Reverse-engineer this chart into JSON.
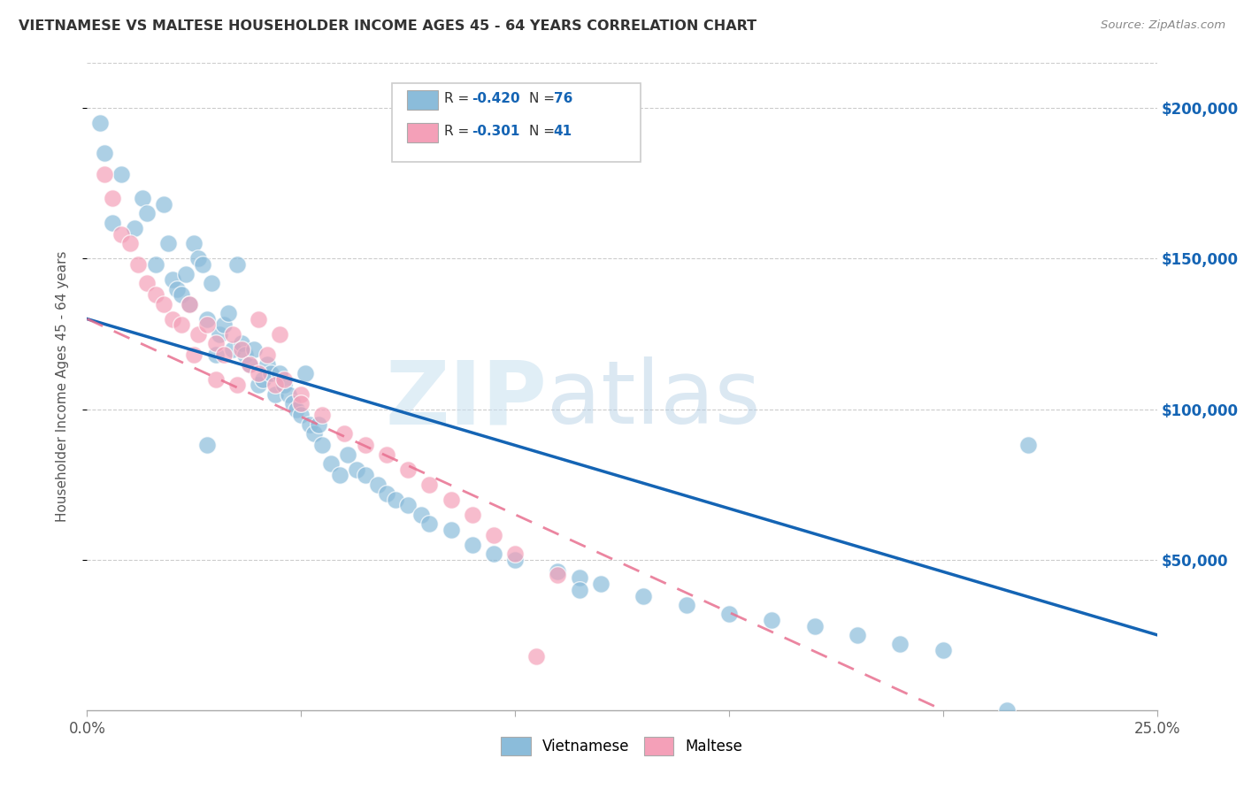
{
  "title": "VIETNAMESE VS MALTESE HOUSEHOLDER INCOME AGES 45 - 64 YEARS CORRELATION CHART",
  "source": "Source: ZipAtlas.com",
  "ylabel": "Householder Income Ages 45 - 64 years",
  "legend_line1": "R = -0.420   N = 76",
  "legend_line2": "R = -0.301   N = 41",
  "R_vietnamese": "-0.420",
  "N_vietnamese": "76",
  "R_maltese": "-0.301",
  "N_maltese": "41",
  "ytick_labels": [
    "$50,000",
    "$100,000",
    "$150,000",
    "$200,000"
  ],
  "ytick_values": [
    50000,
    100000,
    150000,
    200000
  ],
  "ylim": [
    0,
    215000
  ],
  "xlim": [
    0.0,
    0.25
  ],
  "blue_dot_color": "#8bbcda",
  "pink_dot_color": "#f4a0b8",
  "blue_line_color": "#1464b4",
  "pink_line_color": "#e87090",
  "watermark_zip": "ZIP",
  "watermark_atlas": "atlas",
  "vietnamese_x": [
    0.004,
    0.008,
    0.011,
    0.013,
    0.014,
    0.016,
    0.018,
    0.019,
    0.02,
    0.021,
    0.022,
    0.023,
    0.024,
    0.025,
    0.026,
    0.027,
    0.028,
    0.029,
    0.03,
    0.031,
    0.032,
    0.033,
    0.034,
    0.035,
    0.036,
    0.037,
    0.038,
    0.039,
    0.04,
    0.041,
    0.042,
    0.043,
    0.044,
    0.045,
    0.046,
    0.047,
    0.048,
    0.049,
    0.05,
    0.051,
    0.052,
    0.053,
    0.054,
    0.055,
    0.057,
    0.059,
    0.061,
    0.063,
    0.065,
    0.068,
    0.07,
    0.072,
    0.075,
    0.078,
    0.08,
    0.085,
    0.09,
    0.095,
    0.1,
    0.11,
    0.115,
    0.12,
    0.13,
    0.14,
    0.15,
    0.16,
    0.17,
    0.18,
    0.19,
    0.2,
    0.215,
    0.22,
    0.003,
    0.006,
    0.028,
    0.115
  ],
  "vietnamese_y": [
    185000,
    178000,
    160000,
    170000,
    165000,
    148000,
    168000,
    155000,
    143000,
    140000,
    138000,
    145000,
    135000,
    155000,
    150000,
    148000,
    130000,
    142000,
    118000,
    125000,
    128000,
    132000,
    120000,
    148000,
    122000,
    118000,
    115000,
    120000,
    108000,
    110000,
    115000,
    112000,
    105000,
    112000,
    108000,
    105000,
    102000,
    100000,
    98000,
    112000,
    95000,
    92000,
    95000,
    88000,
    82000,
    78000,
    85000,
    80000,
    78000,
    75000,
    72000,
    70000,
    68000,
    65000,
    62000,
    60000,
    55000,
    52000,
    50000,
    46000,
    44000,
    42000,
    38000,
    35000,
    32000,
    30000,
    28000,
    25000,
    22000,
    20000,
    0,
    88000,
    195000,
    162000,
    88000,
    40000
  ],
  "maltese_x": [
    0.004,
    0.006,
    0.008,
    0.01,
    0.012,
    0.014,
    0.016,
    0.018,
    0.02,
    0.022,
    0.024,
    0.026,
    0.028,
    0.03,
    0.032,
    0.034,
    0.036,
    0.038,
    0.04,
    0.042,
    0.044,
    0.046,
    0.05,
    0.055,
    0.06,
    0.065,
    0.07,
    0.075,
    0.08,
    0.085,
    0.09,
    0.095,
    0.1,
    0.11,
    0.04,
    0.045,
    0.03,
    0.025,
    0.035,
    0.05,
    0.105
  ],
  "maltese_y": [
    178000,
    170000,
    158000,
    155000,
    148000,
    142000,
    138000,
    135000,
    130000,
    128000,
    135000,
    125000,
    128000,
    122000,
    118000,
    125000,
    120000,
    115000,
    112000,
    118000,
    108000,
    110000,
    105000,
    98000,
    92000,
    88000,
    85000,
    80000,
    75000,
    70000,
    65000,
    58000,
    52000,
    45000,
    130000,
    125000,
    110000,
    118000,
    108000,
    102000,
    18000
  ]
}
